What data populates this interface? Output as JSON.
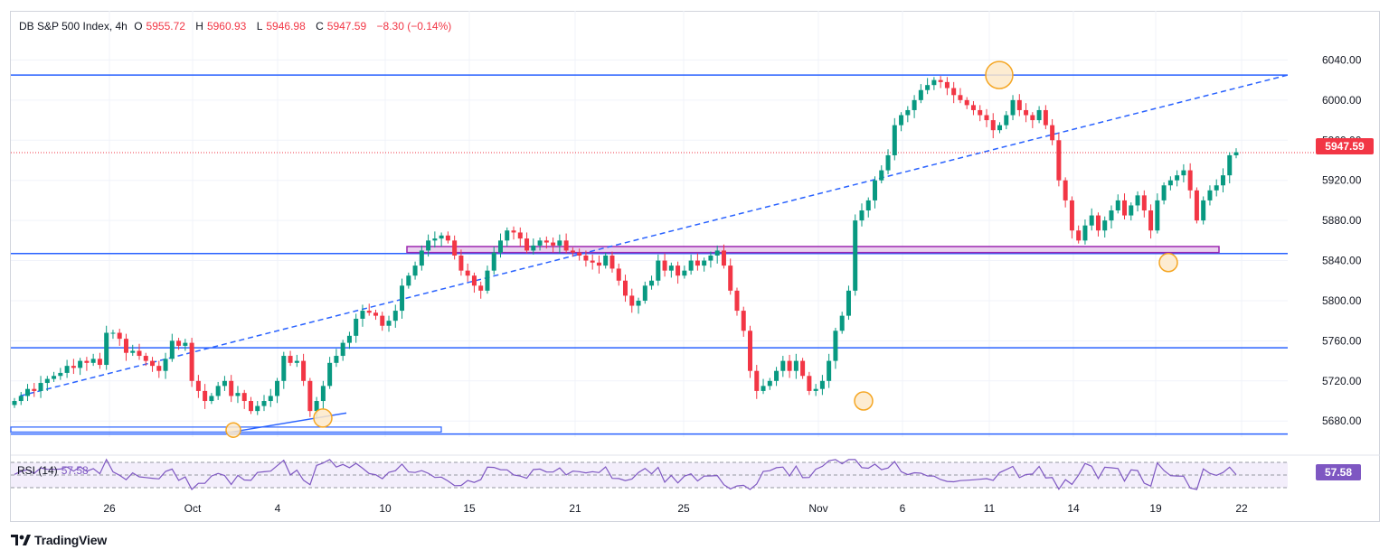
{
  "legend": {
    "symbol": "DB S&P 500 Index, 4h",
    "open_label": "O",
    "open": "5955.72",
    "high_label": "H",
    "high": "5960.93",
    "low_label": "L",
    "low": "5946.98",
    "close_label": "C",
    "close": "5947.59",
    "change": "−8.30 (−0.14%)"
  },
  "rsi_legend": {
    "label": "RSI (14)",
    "value": "57.58"
  },
  "last_price_tag": "5947.59",
  "rsi_tag": "57.58",
  "brand": {
    "name": "TradingView"
  },
  "colors": {
    "up": "#089981",
    "down": "#f23645",
    "hline": "#2962ff",
    "trend_dashed": "#2962ff",
    "zone_fill": "#e1bee7",
    "zone_border": "#9c27b0",
    "marker": "#f5a623",
    "rsi_line": "#7e57c2",
    "grid": "#f0f3fa"
  },
  "chart_data": {
    "type": "candlestick",
    "title": "DB S&P 500 Index, 4h",
    "ylim": [
      5664,
      6062
    ],
    "y_ticks": [
      5680,
      5720,
      5760,
      5800,
      5840,
      5880,
      5920,
      5960,
      6000,
      6040
    ],
    "x_tick_labels": [
      "26",
      "Oct",
      "4",
      "10",
      "15",
      "21",
      "25",
      "Nov",
      "6",
      "11",
      "14",
      "19",
      "22"
    ],
    "horizontal_levels": [
      6025,
      5847,
      5753,
      5667
    ],
    "support_zone": [
      5848,
      5854
    ],
    "last_price": 5947.59,
    "rsi": {
      "period": 14,
      "value": 57.58,
      "ylim": [
        0,
        100
      ],
      "bands": [
        30,
        50,
        70
      ]
    },
    "markers": [
      "swing-low-oct-2",
      "swing-low-oct-7",
      "swing-low-nov-4",
      "swing-high-nov-11",
      "swing-low-nov-19"
    ],
    "candles_close_path": [
      5700,
      5705,
      5712,
      5710,
      5718,
      5722,
      5725,
      5728,
      5735,
      5733,
      5740,
      5738,
      5742,
      5736,
      5768,
      5768,
      5762,
      5748,
      5750,
      5745,
      5740,
      5735,
      5730,
      5742,
      5760,
      5755,
      5758,
      5720,
      5710,
      5700,
      5705,
      5715,
      5720,
      5705,
      5708,
      5700,
      5690,
      5695,
      5700,
      5705,
      5720,
      5745,
      5738,
      5740,
      5720,
      5690,
      5700,
      5715,
      5738,
      5745,
      5758,
      5765,
      5782,
      5790,
      5788,
      5785,
      5775,
      5780,
      5790,
      5815,
      5825,
      5835,
      5850,
      5860,
      5862,
      5865,
      5860,
      5845,
      5830,
      5825,
      5815,
      5810,
      5830,
      5848,
      5860,
      5870,
      5868,
      5862,
      5850,
      5855,
      5860,
      5858,
      5855,
      5860,
      5850,
      5848,
      5845,
      5840,
      5838,
      5835,
      5845,
      5832,
      5820,
      5805,
      5795,
      5800,
      5815,
      5820,
      5840,
      5830,
      5835,
      5825,
      5830,
      5840,
      5835,
      5840,
      5845,
      5850,
      5835,
      5810,
      5790,
      5770,
      5730,
      5710,
      5715,
      5720,
      5730,
      5740,
      5730,
      5740,
      5725,
      5710,
      5712,
      5720,
      5740,
      5770,
      5785,
      5810,
      5880,
      5890,
      5900,
      5920,
      5930,
      5945,
      5975,
      5985,
      5990,
      6000,
      6010,
      6015,
      6020,
      6018,
      6012,
      6005,
      6000,
      5995,
      5990,
      5985,
      5980,
      5970,
      5975,
      5985,
      6000,
      5990,
      5985,
      5980,
      5990,
      5975,
      5960,
      5920,
      5900,
      5870,
      5860,
      5875,
      5885,
      5870,
      5880,
      5890,
      5900,
      5885,
      5895,
      5905,
      5890,
      5870,
      5900,
      5915,
      5920,
      5925,
      5930,
      5910,
      5880,
      5900,
      5910,
      5915,
      5925,
      5945,
      5948
    ]
  }
}
